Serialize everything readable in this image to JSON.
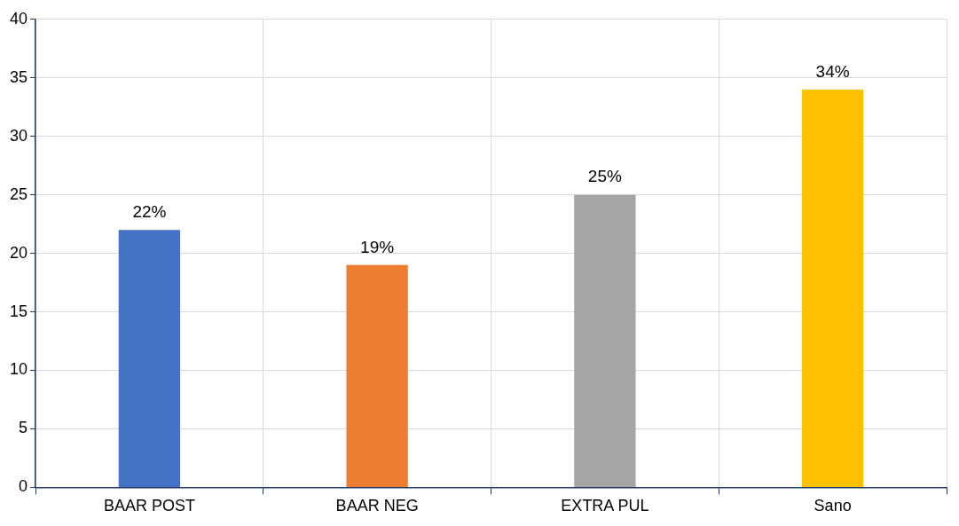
{
  "chart_data": {
    "type": "bar",
    "categories": [
      "BAAR POST",
      "BAAR NEG",
      "EXTRA PUL",
      "Sano"
    ],
    "values": [
      22,
      19,
      25,
      34
    ],
    "colors": [
      "#4472c4",
      "#ed7d31",
      "#a5a5a5",
      "#ffc000"
    ],
    "value_labels": [
      "22%",
      "19%",
      "25%",
      "34%"
    ],
    "ylim": [
      0,
      40
    ],
    "yticks": [
      0,
      5,
      10,
      15,
      20,
      25,
      30,
      35,
      40
    ],
    "grid": true,
    "legend": false
  }
}
